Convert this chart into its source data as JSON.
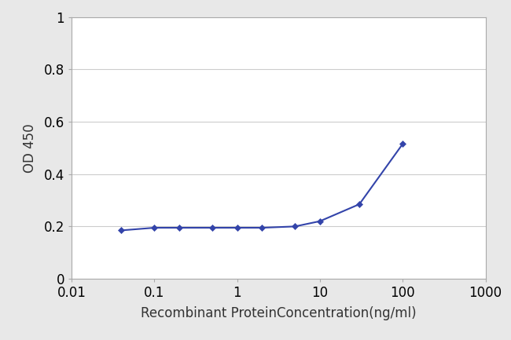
{
  "x_data": [
    0.04,
    0.1,
    0.2,
    0.5,
    1,
    2,
    5,
    10,
    30,
    100
  ],
  "y_data": [
    0.185,
    0.195,
    0.195,
    0.195,
    0.195,
    0.195,
    0.2,
    0.22,
    0.285,
    0.515
  ],
  "line_color": "#3344aa",
  "marker": "D",
  "marker_size": 4,
  "line_width": 1.5,
  "xlabel": "Recombinant ProteinConcentration(ng/ml)",
  "ylabel": "OD 450",
  "xlim": [
    0.01,
    1000
  ],
  "ylim": [
    0,
    1
  ],
  "yticks": [
    0,
    0.2,
    0.4,
    0.6,
    0.8,
    1.0
  ],
  "ytick_labels": [
    "0",
    "0.2",
    "0.4",
    "0.6",
    "0.8",
    "1"
  ],
  "xtick_labels": [
    "0.01",
    "0.1",
    "1",
    "10",
    "100",
    "1000"
  ],
  "xtick_values": [
    0.01,
    0.1,
    1,
    10,
    100,
    1000
  ],
  "xlabel_fontsize": 12,
  "ylabel_fontsize": 12,
  "tick_fontsize": 12,
  "figure_facecolor": "#e8e8e8",
  "plot_bg_color": "#ffffff",
  "grid_color": "#cccccc",
  "spine_color": "#aaaaaa"
}
